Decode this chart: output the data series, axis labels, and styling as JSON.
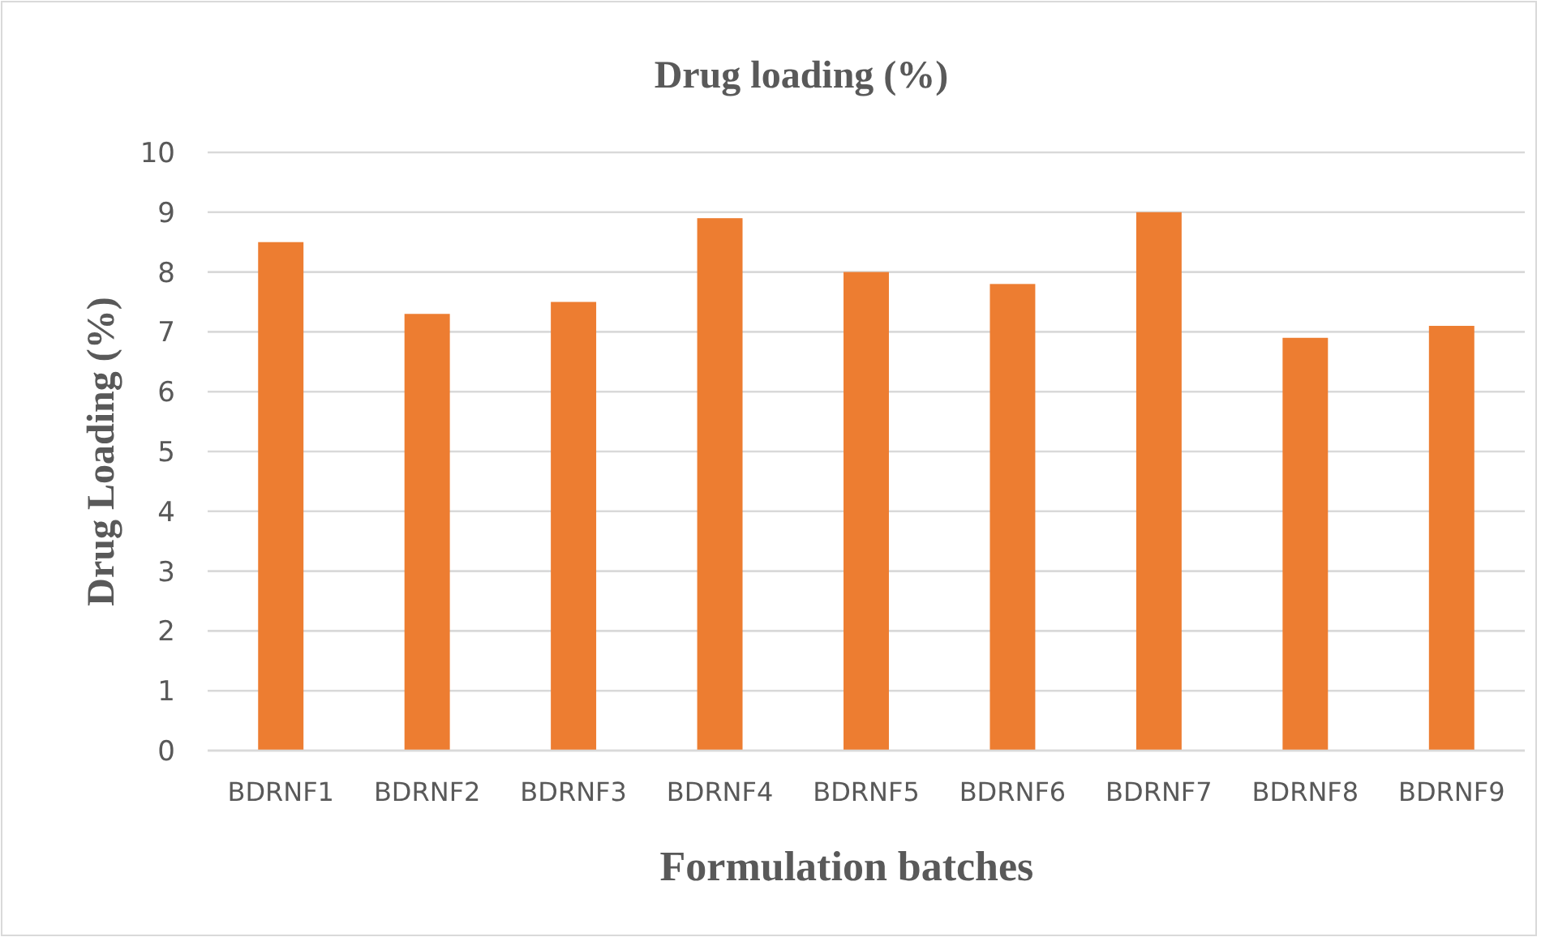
{
  "chart_data": {
    "type": "bar",
    "title": "Drug loading  (%)",
    "xlabel": "Formulation batches",
    "ylabel": "Drug Loading (%)",
    "categories": [
      "BDRNF1",
      "BDRNF2",
      "BDRNF3",
      "BDRNF4",
      "BDRNF5",
      "BDRNF6",
      "BDRNF7",
      "BDRNF8",
      "BDRNF9"
    ],
    "values": [
      8.5,
      7.3,
      7.5,
      8.9,
      8.0,
      7.8,
      9.0,
      6.9,
      7.1
    ],
    "color": "#ed7d31",
    "ylim": [
      0,
      10
    ],
    "yticks": [
      0,
      1,
      2,
      3,
      4,
      5,
      6,
      7,
      8,
      9,
      10
    ],
    "grid": "y"
  }
}
